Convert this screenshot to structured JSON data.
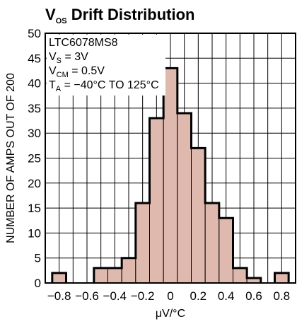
{
  "chart_data": {
    "type": "bar",
    "title": {
      "main": "V",
      "sub": "OS",
      "rest": " Drift Distribution"
    },
    "xlabel": "μV/°C",
    "ylabel": "NUMBER OF AMPS OUT OF 200",
    "xlim": [
      -0.9,
      0.9
    ],
    "ylim": [
      0,
      50
    ],
    "x_ticks": [
      -0.8,
      -0.6,
      -0.4,
      -0.2,
      0,
      0.2,
      0.4,
      0.6,
      0.8
    ],
    "x_tick_labels": [
      "−0.8",
      "−0.6",
      "−0.4",
      "−0.2",
      "0",
      "0.2",
      "0.4",
      "0.6",
      "0.8"
    ],
    "y_ticks": [
      0,
      5,
      10,
      15,
      20,
      25,
      30,
      35,
      40,
      45,
      50
    ],
    "y_tick_labels": [
      "0",
      "5",
      "10",
      "15",
      "20",
      "25",
      "30",
      "35",
      "40",
      "45",
      "50"
    ],
    "bin_width": 0.1,
    "bins_x": [
      -0.8,
      -0.7,
      -0.6,
      -0.5,
      -0.4,
      -0.3,
      -0.2,
      -0.1,
      0.0,
      0.1,
      0.2,
      0.3,
      0.4,
      0.5,
      0.6,
      0.7,
      0.8
    ],
    "values": [
      2,
      0,
      0,
      3,
      3,
      5,
      16,
      33,
      43,
      34,
      27,
      16,
      13,
      3,
      1,
      0,
      2
    ],
    "grid": true,
    "legend": "none",
    "conditions": [
      {
        "main": "LTC6078MS8",
        "sub": "",
        "rest": ""
      },
      {
        "main": "V",
        "sub": "S",
        "rest": " = 3V"
      },
      {
        "main": "V",
        "sub": "CM",
        "rest": " = 0.5V"
      },
      {
        "main": "T",
        "sub": "A",
        "rest": " = −40°C TO 125°C"
      }
    ],
    "colors": {
      "bar_fill": "#dfb8ae",
      "outline": "#000000"
    }
  }
}
